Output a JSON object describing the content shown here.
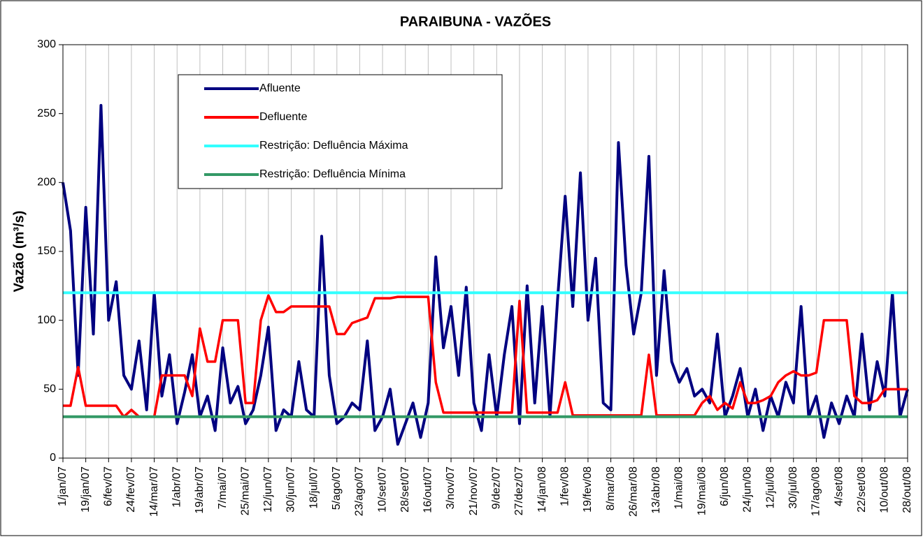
{
  "chart_data": {
    "type": "line",
    "title": "PARAIBUNA - VAZÕES",
    "y_label": "Vazão (m³/s)",
    "categories": [
      "1/jan/07",
      null,
      null,
      "19/jan/07",
      null,
      null,
      "6/fev/07",
      null,
      null,
      "24/fev/07",
      null,
      null,
      "14/mar/07",
      null,
      null,
      "1/abr/07",
      null,
      null,
      "19/abr/07",
      null,
      null,
      "7/mai/07",
      null,
      null,
      "25/mai/07",
      null,
      null,
      "12/jun/07",
      null,
      null,
      "30/jun/07",
      null,
      null,
      "18/jul/07",
      null,
      null,
      "5/ago/07",
      null,
      null,
      "23/ago/07",
      null,
      null,
      "10/set/07",
      null,
      null,
      "28/set/07",
      null,
      null,
      "16/out/07",
      null,
      null,
      "3/nov/07",
      null,
      null,
      "21/nov/07",
      null,
      null,
      "9/dez/07",
      null,
      null,
      "27/dez/07",
      null,
      null,
      "14/jan/08",
      null,
      null,
      "1/fev/08",
      null,
      null,
      "19/fev/08",
      null,
      null,
      "8/mar/08",
      null,
      null,
      "26/mar/08",
      null,
      null,
      "13/abr/08",
      null,
      null,
      "1/mai/08",
      null,
      null,
      "19/mai/08",
      null,
      null,
      "6/jun/08",
      null,
      null,
      "24/jun/08",
      null,
      null,
      "12/jul/08",
      null,
      null,
      "30/jul/08",
      null,
      null,
      "17/ago/08",
      null,
      null,
      "4/set/08",
      null,
      null,
      "22/set/08",
      null,
      null,
      "10/out/08",
      null,
      null,
      "28/out/08"
    ],
    "series": [
      {
        "name": "Afluente",
        "color": "#000080",
        "values": [
          200,
          165,
          60,
          182,
          90,
          256,
          100,
          128,
          60,
          50,
          85,
          35,
          120,
          45,
          75,
          25,
          48,
          75,
          30,
          45,
          20,
          80,
          40,
          52,
          25,
          35,
          60,
          95,
          20,
          35,
          30,
          70,
          35,
          30,
          161,
          60,
          25,
          30,
          40,
          35,
          85,
          20,
          30,
          50,
          10,
          25,
          40,
          15,
          40,
          146,
          80,
          110,
          60,
          124,
          40,
          20,
          75,
          30,
          75,
          110,
          25,
          125,
          40,
          110,
          30,
          115,
          190,
          110,
          207,
          100,
          145,
          40,
          35,
          229,
          140,
          90,
          120,
          219,
          60,
          136,
          70,
          55,
          65,
          45,
          50,
          40,
          90,
          30,
          45,
          65,
          30,
          50,
          20,
          45,
          30,
          55,
          40,
          110,
          30,
          45,
          15,
          40,
          25,
          45,
          30,
          90,
          35,
          70,
          45,
          120,
          30,
          50
        ]
      },
      {
        "name": "Defluente",
        "color": "#ff0000",
        "values": [
          38,
          38,
          66,
          38,
          38,
          38,
          38,
          38,
          30,
          35,
          30,
          30,
          30,
          60,
          60,
          60,
          60,
          45,
          94,
          70,
          70,
          100,
          100,
          100,
          40,
          40,
          100,
          118,
          106,
          106,
          110,
          110,
          110,
          110,
          110,
          110,
          90,
          90,
          98,
          100,
          102,
          116,
          116,
          116,
          117,
          117,
          117,
          117,
          117,
          55,
          33,
          33,
          33,
          33,
          33,
          33,
          33,
          33,
          33,
          33,
          114,
          33,
          33,
          33,
          33,
          33,
          55,
          31,
          31,
          31,
          31,
          31,
          31,
          31,
          31,
          31,
          31,
          75,
          31,
          31,
          31,
          31,
          31,
          31,
          40,
          45,
          35,
          40,
          36,
          55,
          40,
          40,
          42,
          45,
          55,
          60,
          63,
          60,
          60,
          62,
          100,
          100,
          100,
          100,
          45,
          40,
          40,
          42,
          50,
          50,
          50,
          50
        ]
      }
    ],
    "reference_lines": [
      {
        "name": "Restrição: Defluência Máxima",
        "color": "#33ffff",
        "value": 120
      },
      {
        "name": "Restrição: Defluência Mínima",
        "color": "#339966",
        "value": 30
      }
    ],
    "ylim": [
      0,
      300
    ],
    "yticks": [
      0,
      50,
      100,
      150,
      200,
      250,
      300
    ],
    "grid": "x"
  }
}
